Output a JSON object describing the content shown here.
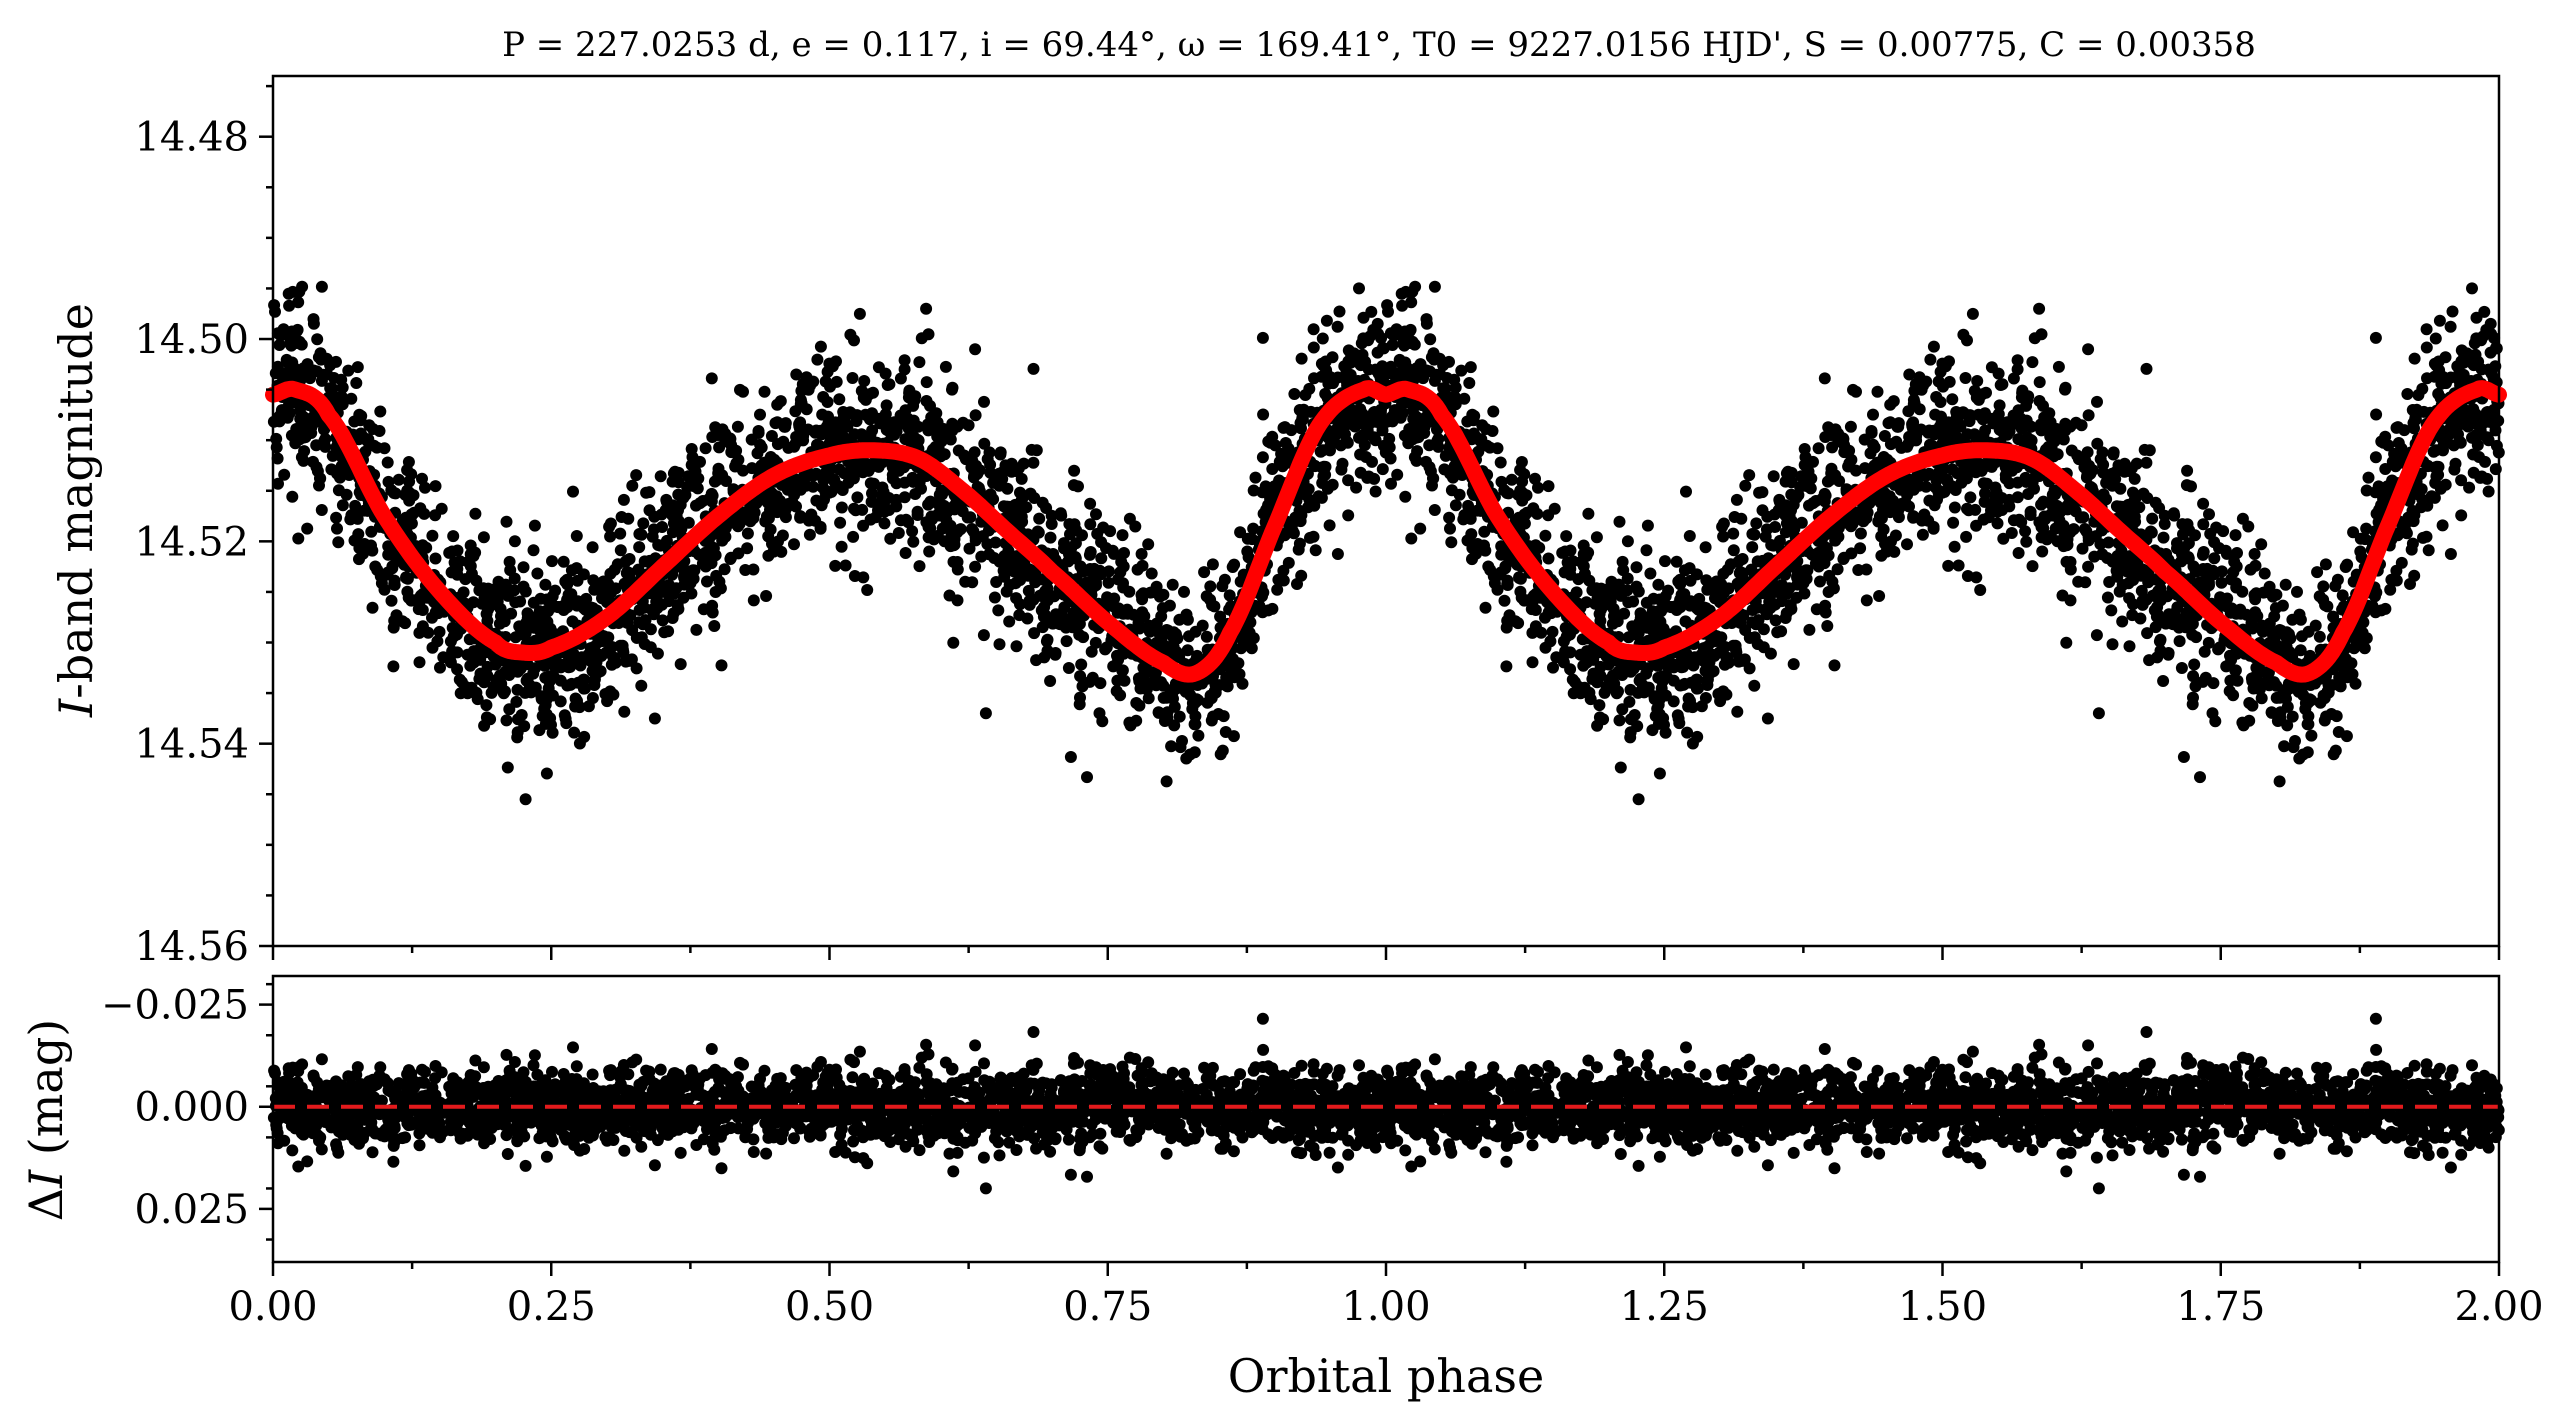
{
  "chart_data": [
    {
      "type": "scatter",
      "panel": "top",
      "title": "P = 227.0253 d, e = 0.117, i = 69.44°, ω = 169.41°, T0 = 9227.0156 HJD', S = 0.00775, C = 0.00358",
      "xlabel": "",
      "ylabel": "I-band magnitude",
      "xlim": [
        0.0,
        2.0
      ],
      "ylim": [
        14.56,
        14.474
      ],
      "y_inverted": true,
      "yticks": [
        "14.48",
        "14.50",
        "14.52",
        "14.54",
        "14.56"
      ],
      "series": [
        {
          "kind": "points",
          "color": "#000000",
          "description_points": "phase-folded photometry, ~5000 points per cycle, scatter about model ±0.012 mag"
        },
        {
          "kind": "model-line",
          "color": "#ff0000",
          "x": [
            0.0,
            0.02,
            0.05,
            0.1,
            0.15,
            0.2,
            0.225,
            0.25,
            0.3,
            0.35,
            0.4,
            0.45,
            0.5,
            0.54,
            0.58,
            0.62,
            0.66,
            0.7,
            0.75,
            0.8,
            0.83,
            0.86,
            0.9,
            0.94,
            0.98,
            1.0
          ],
          "y": [
            14.5055,
            14.505,
            14.5075,
            14.5175,
            14.525,
            14.53,
            14.531,
            14.5305,
            14.5275,
            14.5225,
            14.5175,
            14.5135,
            14.5115,
            14.511,
            14.5118,
            14.515,
            14.519,
            14.523,
            14.528,
            14.532,
            14.533,
            14.529,
            14.5185,
            14.5085,
            14.505,
            14.5055
          ]
        }
      ]
    },
    {
      "type": "scatter",
      "panel": "bottom",
      "xlabel": "Orbital phase",
      "ylabel": "ΔI (mag)",
      "xlim": [
        0.0,
        2.0
      ],
      "ylim": [
        0.038,
        -0.032
      ],
      "y_inverted": true,
      "xticks": [
        "0.00",
        "0.25",
        "0.50",
        "0.75",
        "1.00",
        "1.25",
        "1.50",
        "1.75",
        "2.00"
      ],
      "yticks": [
        "−0.025",
        "0.000",
        "0.025"
      ],
      "series": [
        {
          "kind": "residual-points",
          "color": "#000000",
          "scatter_sigma": 0.0045
        },
        {
          "kind": "zero-line",
          "style": "dashed",
          "color": "#e31a1c",
          "y": 0.0
        }
      ]
    }
  ],
  "colors": {
    "points": "#000000",
    "model": "#ff0000",
    "zero_line": "#e31a1c"
  }
}
